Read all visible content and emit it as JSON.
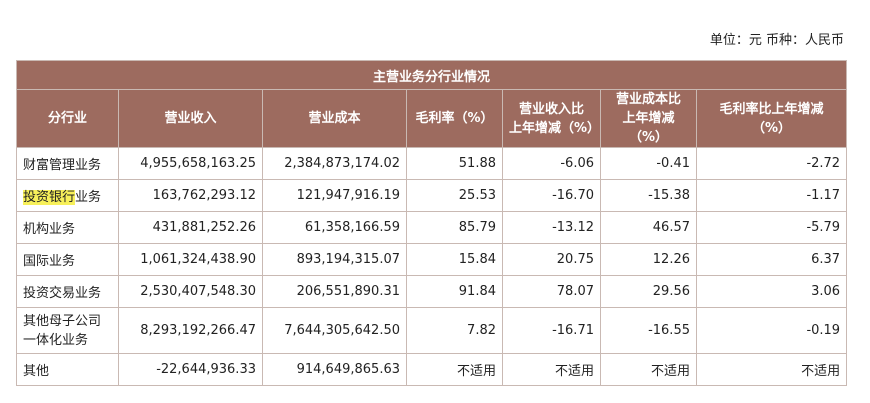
{
  "unit_line": "单位：元  币种：人民币",
  "table_title": "主营业务分行业情况",
  "headers": [
    "分行业",
    "营业收入",
    "营业成本",
    "毛利率（%）",
    "营业收入比\n上年增减（%）",
    "营业成本比\n上年增减（%）",
    "毛利率比上年增减\n（%）"
  ],
  "rows": [
    {
      "name": "财富管理业务",
      "revenue": "4,955,658,163.25",
      "cost": "2,384,873,174.02",
      "margin": "51.88",
      "rev_chg": "-6.06",
      "cost_chg": "-0.41",
      "margin_chg": "-2.72"
    },
    {
      "name_hl": "投资银行",
      "name_rest": "业务",
      "revenue": "163,762,293.12",
      "cost": "121,947,916.19",
      "margin": "25.53",
      "rev_chg": "-16.70",
      "cost_chg": "-15.38",
      "margin_chg": "-1.17"
    },
    {
      "name": "机构业务",
      "revenue": "431,881,252.26",
      "cost": "61,358,166.59",
      "margin": "85.79",
      "rev_chg": "-13.12",
      "cost_chg": "46.57",
      "margin_chg": "-5.79"
    },
    {
      "name": "国际业务",
      "revenue": "1,061,324,438.90",
      "cost": "893,194,315.07",
      "margin": "15.84",
      "rev_chg": "20.75",
      "cost_chg": "12.26",
      "margin_chg": "6.37"
    },
    {
      "name": "投资交易业务",
      "revenue": "2,530,407,548.30",
      "cost": "206,551,890.31",
      "margin": "91.84",
      "rev_chg": "78.07",
      "cost_chg": "29.56",
      "margin_chg": "3.06"
    },
    {
      "name": "其他母子公司\n一体化业务",
      "revenue": "8,293,192,266.47",
      "cost": "7,644,305,642.50",
      "margin": "7.82",
      "rev_chg": "-16.71",
      "cost_chg": "-16.55",
      "margin_chg": "-0.19"
    },
    {
      "name": "其他",
      "revenue": "-22,644,936.33",
      "cost": "914,649,865.63",
      "margin": "不适用",
      "rev_chg": "不适用",
      "cost_chg": "不适用",
      "margin_chg": "不适用"
    }
  ],
  "colors": {
    "header_bg": "#9d6b5f",
    "highlight": "#f7f05a"
  }
}
